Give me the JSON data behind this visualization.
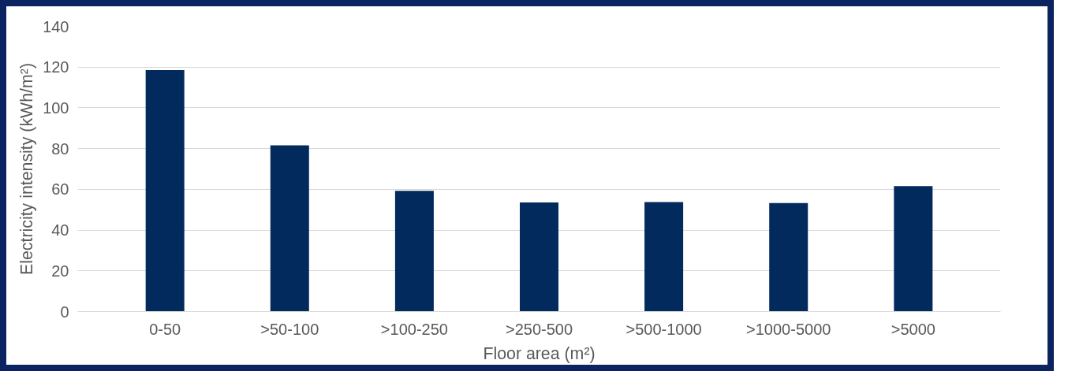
{
  "chart_data": {
    "type": "bar",
    "xlabel": "Floor area (m²)",
    "ylabel": "Electricity intensity (kWh/m²)",
    "categories": [
      "0-50",
      ">50-100",
      ">100-250",
      ">250-500",
      ">500-1000",
      ">1000-5000",
      ">5000"
    ],
    "values": [
      118.5,
      81.6,
      59.3,
      53.6,
      53.8,
      53.3,
      61.6
    ],
    "color": "#032a5c",
    "ylim": [
      0,
      140
    ],
    "yticks": [
      0,
      20,
      40,
      60,
      80,
      100,
      120,
      140
    ],
    "grid": "y"
  }
}
